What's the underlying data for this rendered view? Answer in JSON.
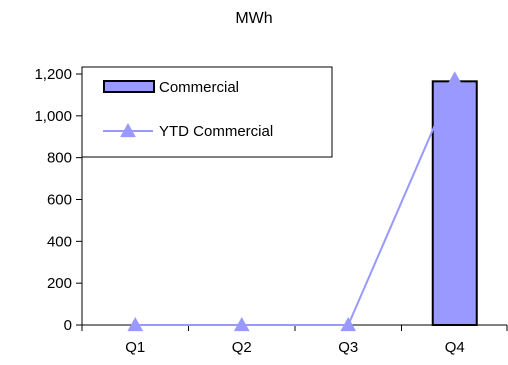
{
  "chart_data": {
    "type": "bar",
    "title": "MWh",
    "xlabel": "",
    "ylabel": "",
    "categories": [
      "Q1",
      "Q2",
      "Q3",
      "Q4"
    ],
    "ylim": [
      0,
      1200
    ],
    "yticks": [
      0,
      200,
      400,
      600,
      800,
      1000,
      1200
    ],
    "ytick_labels": [
      "0",
      "200",
      "400",
      "600",
      "800",
      "1,000",
      "1,200"
    ],
    "grid": false,
    "legend_position": "top-left",
    "series": [
      {
        "name": "Commercial",
        "type": "bar",
        "values": [
          0,
          0,
          0,
          1165
        ],
        "color": "#9999ff",
        "edge_color": "#000000"
      },
      {
        "name": "YTD Commercial",
        "type": "line",
        "marker": "triangle",
        "values": [
          0,
          0,
          0,
          1175
        ],
        "color": "#9999ff"
      }
    ]
  }
}
